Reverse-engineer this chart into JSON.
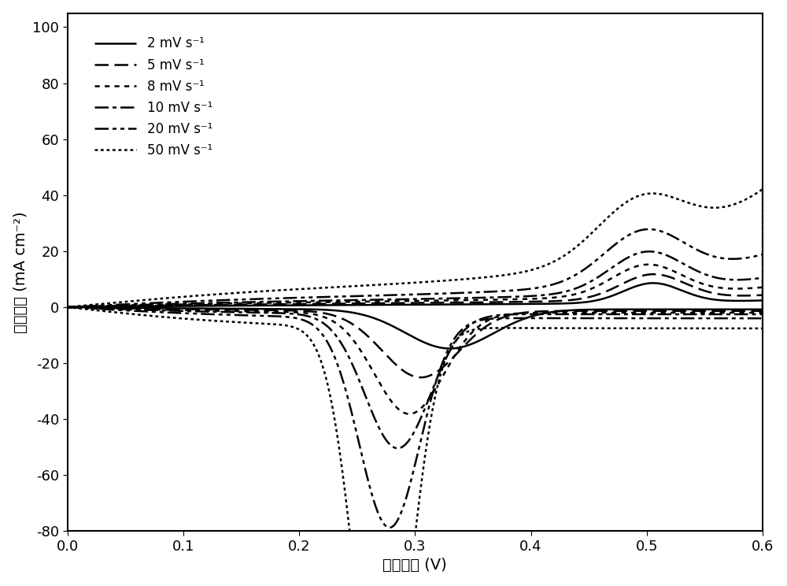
{
  "title": "",
  "xlabel": "电压区间 (V)",
  "ylabel": "电流密度 (mA cm⁻²)",
  "xlim": [
    0.0,
    0.6
  ],
  "ylim": [
    -80,
    105
  ],
  "yticks": [
    -80,
    -60,
    -40,
    -20,
    0,
    20,
    40,
    60,
    80,
    100
  ],
  "xticks": [
    0.0,
    0.1,
    0.2,
    0.3,
    0.4,
    0.5,
    0.6
  ],
  "legend_labels": [
    "2 mV s⁻¹",
    "5 mV s⁻¹",
    "8 mV s⁻¹",
    "10 mV s⁻¹",
    "20 mV s⁻¹",
    "50 mV s⁻¹"
  ],
  "line_colors": [
    "black",
    "black",
    "black",
    "black",
    "black",
    "black"
  ],
  "line_widths": [
    1.8,
    1.8,
    1.8,
    1.8,
    1.8,
    1.8
  ],
  "background_color": "#ffffff",
  "font_size": 14,
  "legend_font_size": 12,
  "scale_factors": [
    1.0,
    1.7,
    2.5,
    3.2,
    5.0,
    9.5
  ],
  "red_peak_centers": [
    0.33,
    0.305,
    0.295,
    0.285,
    0.278,
    0.272
  ],
  "red_peak_widths": [
    0.038,
    0.033,
    0.03,
    0.028,
    0.026,
    0.024
  ],
  "red_peak_depths": [
    14.0,
    14.0,
    14.5,
    15.0,
    15.0,
    15.5
  ],
  "anodic_rise_start": [
    0.5,
    0.48,
    0.47,
    0.46,
    0.45,
    0.44
  ],
  "anodic_rise_rate": [
    7.0,
    7.5,
    8.0,
    8.5,
    9.0,
    9.5
  ],
  "anodic_rise_scale": [
    0.8,
    1.2,
    1.8,
    2.4,
    3.8,
    7.5
  ],
  "ox_peak_pos": [
    0.505,
    0.505,
    0.5,
    0.5,
    0.498,
    0.495
  ],
  "ox_peak_amp": [
    7.0,
    9.0,
    11.0,
    14.0,
    18.0,
    20.0
  ],
  "ox_peak_width": [
    0.025,
    0.028,
    0.03,
    0.032,
    0.035,
    0.038
  ]
}
